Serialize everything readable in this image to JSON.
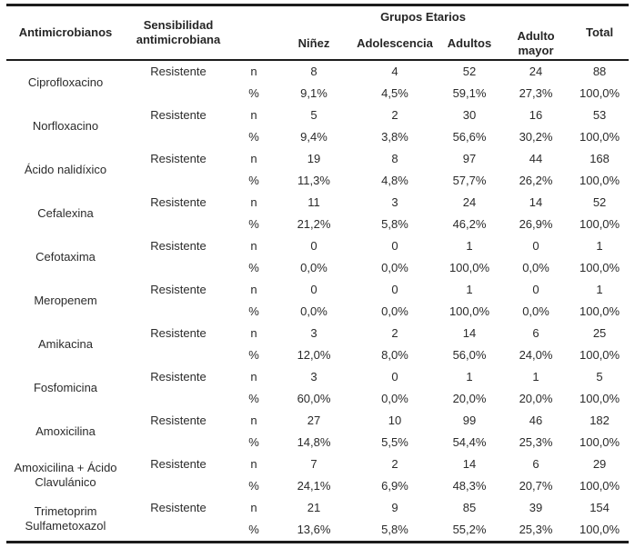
{
  "page": {
    "background": "#ffffff",
    "text_color": "#2b2b2b",
    "rule_color": "#1c1c1c"
  },
  "table": {
    "header": {
      "antimicrobials": "Antimicrobianos",
      "sensitivity": "Sensibilidad antimicrobiana",
      "age_groups": "Grupos Etarios",
      "ninez": "Niñez",
      "adolescencia": "Adolescencia",
      "adultos": "Adultos",
      "adulto_mayor": "Adulto mayor",
      "total": "Total"
    },
    "stat_labels": {
      "n": "n",
      "pct": "%"
    },
    "rows": [
      {
        "name": "Ciprofloxacino",
        "sensitivity": "Resistente",
        "n": [
          "8",
          "4",
          "52",
          "24",
          "88"
        ],
        "pct": [
          "9,1%",
          "4,5%",
          "59,1%",
          "27,3%",
          "100,0%"
        ]
      },
      {
        "name": "Norfloxacino",
        "sensitivity": "Resistente",
        "n": [
          "5",
          "2",
          "30",
          "16",
          "53"
        ],
        "pct": [
          "9,4%",
          "3,8%",
          "56,6%",
          "30,2%",
          "100,0%"
        ]
      },
      {
        "name": "Ácido nalidíxico",
        "sensitivity": "Resistente",
        "n": [
          "19",
          "8",
          "97",
          "44",
          "168"
        ],
        "pct": [
          "11,3%",
          "4,8%",
          "57,7%",
          "26,2%",
          "100,0%"
        ]
      },
      {
        "name": "Cefalexina",
        "sensitivity": "Resistente",
        "n": [
          "11",
          "3",
          "24",
          "14",
          "52"
        ],
        "pct": [
          "21,2%",
          "5,8%",
          "46,2%",
          "26,9%",
          "100,0%"
        ]
      },
      {
        "name": "Cefotaxima",
        "sensitivity": "Resistente",
        "n": [
          "0",
          "0",
          "1",
          "0",
          "1"
        ],
        "pct": [
          "0,0%",
          "0,0%",
          "100,0%",
          "0,0%",
          "100,0%"
        ]
      },
      {
        "name": "Meropenem",
        "sensitivity": "Resistente",
        "n": [
          "0",
          "0",
          "1",
          "0",
          "1"
        ],
        "pct": [
          "0,0%",
          "0,0%",
          "100,0%",
          "0,0%",
          "100,0%"
        ]
      },
      {
        "name": "Amikacina",
        "sensitivity": "Resistente",
        "n": [
          "3",
          "2",
          "14",
          "6",
          "25"
        ],
        "pct": [
          "12,0%",
          "8,0%",
          "56,0%",
          "24,0%",
          "100,0%"
        ]
      },
      {
        "name": "Fosfomicina",
        "sensitivity": "Resistente",
        "n": [
          "3",
          "0",
          "1",
          "1",
          "5"
        ],
        "pct": [
          "60,0%",
          "0,0%",
          "20,0%",
          "20,0%",
          "100,0%"
        ]
      },
      {
        "name": "Amoxicilina",
        "sensitivity": "Resistente",
        "n": [
          "27",
          "10",
          "99",
          "46",
          "182"
        ],
        "pct": [
          "14,8%",
          "5,5%",
          "54,4%",
          "25,3%",
          "100,0%"
        ]
      },
      {
        "name": "Amoxicilina + Ácido Clavulánico",
        "sensitivity": "Resistente",
        "n": [
          "7",
          "2",
          "14",
          "6",
          "29"
        ],
        "pct": [
          "24,1%",
          "6,9%",
          "48,3%",
          "20,7%",
          "100,0%"
        ]
      },
      {
        "name": "Trimetoprim Sulfametoxazol",
        "sensitivity": "Resistente",
        "n": [
          "21",
          "9",
          "85",
          "39",
          "154"
        ],
        "pct": [
          "13,6%",
          "5,8%",
          "55,2%",
          "25,3%",
          "100,0%"
        ]
      }
    ]
  }
}
